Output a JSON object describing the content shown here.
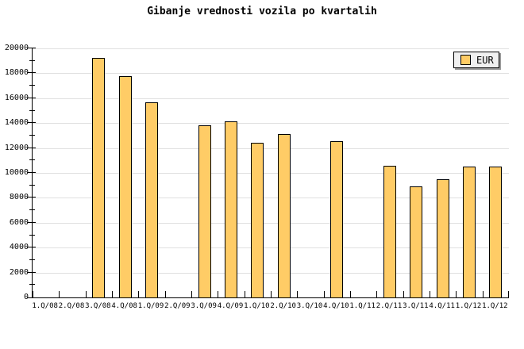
{
  "title": "Gibanje vrednosti vozila po kvartalih",
  "legend": {
    "label": "EUR",
    "position": "top-right",
    "swatch_color": "#FFCC66"
  },
  "colors": {
    "bar_fill": "#FFCC66",
    "bar_border": "#000000",
    "gridline": "#e0e0e0",
    "axis": "#000000",
    "legend_bg": "#f0f0f0",
    "legend_shadow": "#999999",
    "background": "#ffffff"
  },
  "chart_data": {
    "type": "bar",
    "title": "Gibanje vrednosti vozila po kvartalih",
    "xlabel": "",
    "ylabel": "",
    "categories": [
      "1.Q/08",
      "2.Q/08",
      "3.Q/08",
      "4.Q/08",
      "1.Q/09",
      "2.Q/09",
      "3.Q/09",
      "4.Q/09",
      "1.Q/10",
      "2.Q/10",
      "3.Q/10",
      "4.Q/10",
      "1.Q/11",
      "2.Q/11",
      "3.Q/11",
      "4.Q/11",
      "1.Q/12",
      "1.Q/12"
    ],
    "series": [
      {
        "name": "EUR",
        "values": [
          null,
          null,
          19250,
          17800,
          15700,
          null,
          13800,
          14150,
          12450,
          13150,
          null,
          12550,
          null,
          10600,
          8950,
          9500,
          10500,
          10500
        ]
      }
    ],
    "ylim": [
      0,
      20000
    ],
    "ytick_interval": 2000,
    "ytick_minor_interval": 1000,
    "y_ticks": [
      "0",
      "2000",
      "4000",
      "6000",
      "8000",
      "10000",
      "12000",
      "14000",
      "16000",
      "18000",
      "20000"
    ],
    "grid": "horizontal",
    "legend_position": "top-right"
  }
}
